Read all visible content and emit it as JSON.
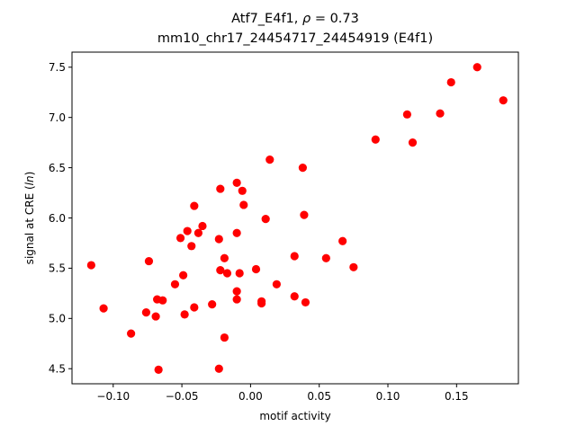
{
  "chart_data": {
    "type": "scatter",
    "title_line1_prefix": "Atf7_E4f1, ",
    "title_rho_symbol": "ρ",
    "title_rho_value": " = 0.73",
    "title_line2": "mm10_chr17_24454717_24454919 (E4f1)",
    "xlabel": "motif activity",
    "ylabel_prefix": "signal at CRE (",
    "ylabel_italic": "ln",
    "ylabel_suffix": ")",
    "xlim": [
      -0.13,
      0.195
    ],
    "ylim": [
      4.35,
      7.65
    ],
    "xticks": [
      -0.1,
      -0.05,
      0.0,
      0.05,
      0.1,
      0.15
    ],
    "xtick_labels": [
      "−0.10",
      "−0.05",
      "0.00",
      "0.05",
      "0.10",
      "0.15"
    ],
    "yticks": [
      4.5,
      5.0,
      5.5,
      6.0,
      6.5,
      7.0,
      7.5
    ],
    "ytick_labels": [
      "4.5",
      "5.0",
      "5.5",
      "6.0",
      "6.5",
      "7.0",
      "7.5"
    ],
    "marker_color": "#ff0000",
    "grid": false,
    "points": [
      {
        "x": -0.116,
        "y": 5.53
      },
      {
        "x": -0.107,
        "y": 5.1
      },
      {
        "x": -0.087,
        "y": 4.85
      },
      {
        "x": -0.076,
        "y": 5.06
      },
      {
        "x": -0.074,
        "y": 5.57
      },
      {
        "x": -0.069,
        "y": 5.02
      },
      {
        "x": -0.068,
        "y": 5.19
      },
      {
        "x": -0.067,
        "y": 4.49
      },
      {
        "x": -0.064,
        "y": 5.18
      },
      {
        "x": -0.055,
        "y": 5.34
      },
      {
        "x": -0.051,
        "y": 5.8
      },
      {
        "x": -0.049,
        "y": 5.43
      },
      {
        "x": -0.048,
        "y": 5.04
      },
      {
        "x": -0.046,
        "y": 5.87
      },
      {
        "x": -0.043,
        "y": 5.72
      },
      {
        "x": -0.041,
        "y": 6.12
      },
      {
        "x": -0.041,
        "y": 5.11
      },
      {
        "x": -0.038,
        "y": 5.85
      },
      {
        "x": -0.035,
        "y": 5.92
      },
      {
        "x": -0.028,
        "y": 5.14
      },
      {
        "x": -0.023,
        "y": 5.79
      },
      {
        "x": -0.022,
        "y": 6.29
      },
      {
        "x": -0.022,
        "y": 5.48
      },
      {
        "x": -0.023,
        "y": 4.5
      },
      {
        "x": -0.019,
        "y": 5.6
      },
      {
        "x": -0.019,
        "y": 4.81
      },
      {
        "x": -0.017,
        "y": 5.45
      },
      {
        "x": -0.01,
        "y": 6.35
      },
      {
        "x": -0.01,
        "y": 5.85
      },
      {
        "x": -0.01,
        "y": 5.27
      },
      {
        "x": -0.01,
        "y": 5.19
      },
      {
        "x": -0.008,
        "y": 5.45
      },
      {
        "x": -0.006,
        "y": 6.27
      },
      {
        "x": -0.005,
        "y": 6.13
      },
      {
        "x": 0.004,
        "y": 5.49
      },
      {
        "x": 0.008,
        "y": 5.15
      },
      {
        "x": 0.008,
        "y": 5.17
      },
      {
        "x": 0.011,
        "y": 5.99
      },
      {
        "x": 0.014,
        "y": 6.58
      },
      {
        "x": 0.019,
        "y": 5.34
      },
      {
        "x": 0.032,
        "y": 5.62
      },
      {
        "x": 0.032,
        "y": 5.22
      },
      {
        "x": 0.038,
        "y": 6.5
      },
      {
        "x": 0.039,
        "y": 6.03
      },
      {
        "x": 0.04,
        "y": 5.16
      },
      {
        "x": 0.055,
        "y": 5.6
      },
      {
        "x": 0.067,
        "y": 5.77
      },
      {
        "x": 0.075,
        "y": 5.51
      },
      {
        "x": 0.091,
        "y": 6.78
      },
      {
        "x": 0.114,
        "y": 7.03
      },
      {
        "x": 0.118,
        "y": 6.75
      },
      {
        "x": 0.138,
        "y": 7.04
      },
      {
        "x": 0.146,
        "y": 7.35
      },
      {
        "x": 0.165,
        "y": 7.5
      },
      {
        "x": 0.184,
        "y": 7.17
      }
    ]
  }
}
